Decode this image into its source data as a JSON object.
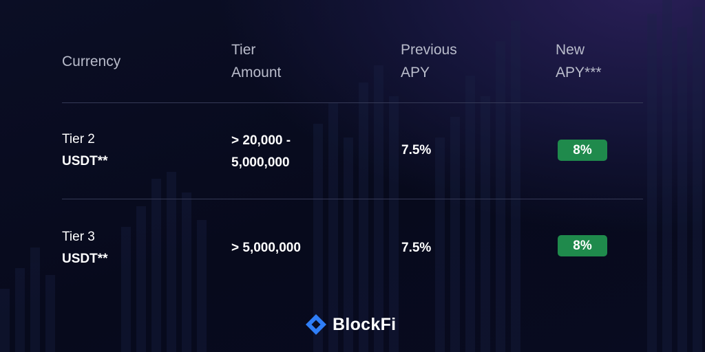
{
  "header": {
    "currency": "Currency",
    "tier_amount_line1": "Tier",
    "tier_amount_line2": "Amount",
    "previous_apy_line1": "Previous",
    "previous_apy_line2": "APY",
    "new_apy_line1": "New",
    "new_apy_line2": "APY***"
  },
  "rows": [
    {
      "tier": "Tier 2",
      "currency": "USDT**",
      "amount_line1": "> 20,000 -",
      "amount_line2": "5,000,000",
      "previous_apy": "7.5%",
      "new_apy": "8%"
    },
    {
      "tier": "Tier 3",
      "currency": "USDT**",
      "amount_line1": "> 5,000,000",
      "amount_line2": "",
      "previous_apy": "7.5%",
      "new_apy": "8%"
    }
  ],
  "brand": {
    "name": "BlockFi",
    "accent": "#2f7ef7",
    "badge_color": "#1f8a4c"
  }
}
